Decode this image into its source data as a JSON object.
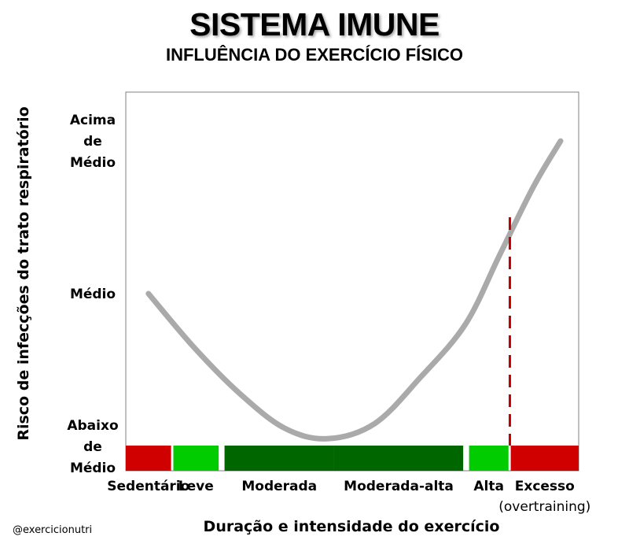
{
  "chart_data": {
    "type": "line",
    "title": "SISTEMA IMUNE",
    "subtitle": "INFLUÊNCIA DO EXERCÍCIO FÍSICO",
    "xlabel": "Duração e intensidade do exercício",
    "ylabel": "Risco de infecções do trato respiratório",
    "yticks": [
      {
        "lines": [
          "Acima",
          "de",
          "Médio"
        ],
        "value": 1
      },
      {
        "lines": [
          "Médio"
        ],
        "value": 0
      },
      {
        "lines": [
          "Abaixo",
          "de",
          "Médio"
        ],
        "value": -1
      }
    ],
    "categories": [
      {
        "label": "Sedentário",
        "sublabel": "",
        "color": "#d00000",
        "start": 0.0,
        "end": 0.1
      },
      {
        "label": "Leve",
        "sublabel": "",
        "color": "#00cc00",
        "start": 0.105,
        "end": 0.205
      },
      {
        "label": "Moderada",
        "sublabel": "",
        "color": "#006600",
        "start": 0.218,
        "end": 0.46
      },
      {
        "label": "Moderada-alta",
        "sublabel": "",
        "color": "#006600",
        "start": 0.46,
        "end": 0.745
      },
      {
        "label": "Alta",
        "sublabel": "",
        "color": "#00cc00",
        "start": 0.758,
        "end": 0.845
      },
      {
        "label": "Excesso",
        "sublabel": "(overtraining)",
        "color": "#d00000",
        "start": 0.85,
        "end": 1.0
      }
    ],
    "series": [
      {
        "color": "#aaaaaa",
        "x": [
          0.05,
          0.15,
          0.25,
          0.35,
          0.445,
          0.55,
          0.65,
          0.75,
          0.825,
          0.9,
          0.96
        ],
        "y": [
          0.0,
          -0.35,
          -0.65,
          -0.88,
          -0.95,
          -0.85,
          -0.55,
          -0.2,
          0.25,
          0.7,
          1.0
        ]
      }
    ],
    "threshold": {
      "x": 0.848,
      "y_top": 0.5,
      "color": "#c00000",
      "style": "dashed"
    },
    "xlim": [
      0,
      1
    ],
    "ylim": [
      -1.16,
      1.32
    ],
    "grid": false,
    "legend": "none"
  },
  "credit": "@exercicionutri"
}
